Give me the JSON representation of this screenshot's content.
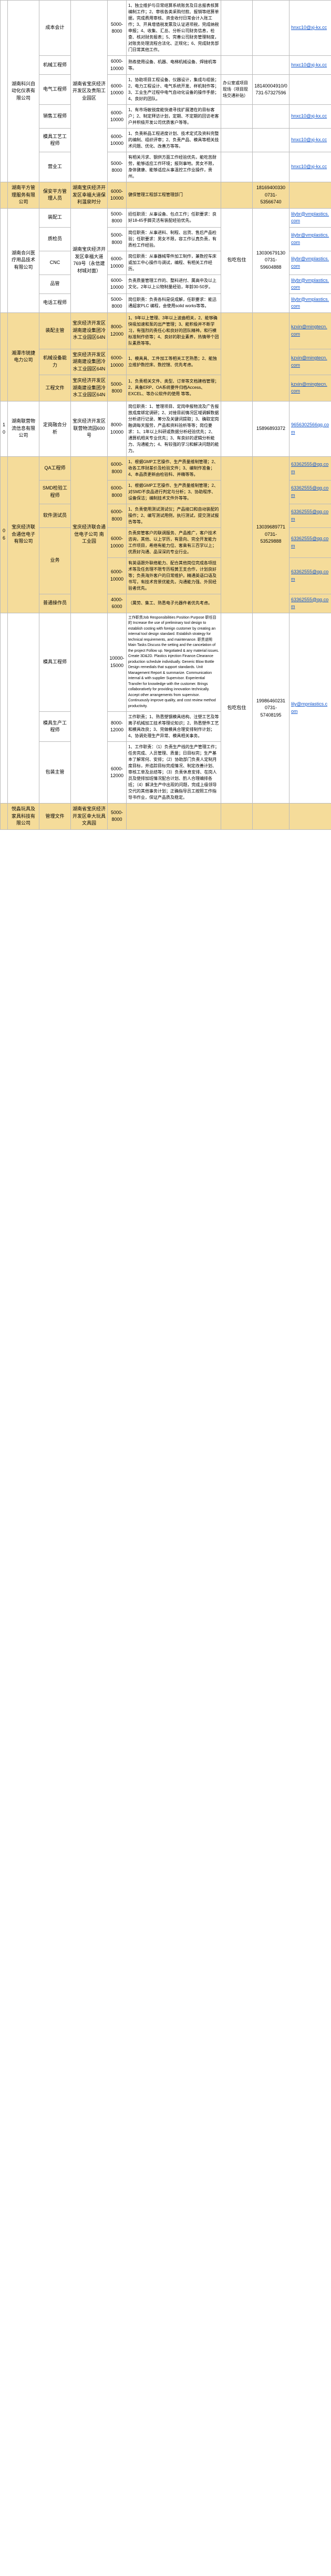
{
  "sal1": "8000-12000",
  "sal2": "6000-10000",
  "sal3": "6000-12000",
  "sal4": "5000-8000",
  "sal5": "8000-10000",
  "sal6": "10000-15000",
  "sal7": "6000-8000",
  "groups": [
    {
      "idx": "",
      "company": "湖南科兴自动化仪表有限公司",
      "addr": "湖南省宝庆经济开发区及贵阳工业园区",
      "phone": "",
      "mail": "hnxc10@xj-kx.cc",
      "rows": [
        {
          "pos": "成本会计",
          "req": "1、独立维护与日常结算系统账务及日总报表核算编制工作；2、审核各类采购付款、报销等结算单据，完成费用审核、资金收付日常会计入账工作；3、开具增值税发票及认证进项税，完成纳税申报；4、收集、汇总、分析公司财务信息，检查、核对财务报表；5、完善公司财务管理制度，对账务处理流程合法化、正规化；6、完成财务部门日常其他工作。"
        },
        {
          "pos": "机械工程师",
          "req": "熟练使用设备、机器、电梯机械设备、焊接机等等。"
        },
        {
          "pos": "电气工程师",
          "req": "1、协助项目工程设备、仪器设计，集成与组装；2、电力工程设计、电气系统开发、样机制作等；3、工业生产过程中电气自动化设备的操作手册；4、良好的团队。",
          "extra": "办公室或项目现场（项目现场交通补贴）",
          "phone": "18140004910/0731-57327596"
        },
        {
          "pos": "销售工程师",
          "req": "1、有市场敏锐度能快速寻找扩展潜在的目标客户；2、制定拜访计划，定期、不定期的回访老客户并积极开发公司优质客户等等。"
        },
        {
          "pos": "模具工艺工程师",
          "req": "1、负责新品工程进度计划、技术定式及资料完整的编制、组织评审；2、负责产品、模具等相关技术问题、优化、改善方等等。"
        },
        {
          "pos": "营业工",
          "req": "有相关污求、钢供方面工作经验优先，能吃苦耐劳，能够适应工作环境；报到事地。男女不限，身体健康、能够适应从事温控工作业操作，贵州。"
        }
      ]
    }
  ],
  "company2": "湖南平方管理服务有限公司",
  "c2_pos": "保安平方管理人员",
  "c2_addr": "湖南宝庆经济开发区幸福大道保利温泉时分",
  "c2_req": "健保管理工程部工程管理部门",
  "c2_phone": "18169400330 0731-53566740",
  "company3": "湖南合兴医疗用品技术有限公司",
  "c3_addr": "湖南宝庆经济开发区幸福大道769号（永信建材城对面）",
  "c3_phone": "13030679130 0731-59604888",
  "c3_extra": "包吃包住",
  "c3_mail": "lilybr@vmplastics.com",
  "c3_rows": [
    {
      "pos": "装配工",
      "req": "招任职须：从事设备、包点工作；任职要求：良好18-45手脚灵活有装配经验优先。"
    },
    {
      "pos": "质检员",
      "req": "岗位职责：从事进料、制程、出货、售后产品检验；任职要求：男女不限，容工作认真负责，有质检工作经验。"
    },
    {
      "pos": "CNC",
      "req": "岗位职责：从事器械零件加工制作，兼数控车床或加工中心操作与调试，编程、有相关工作经历。"
    },
    {
      "pos": "品管",
      "req": "负责质量管理工作的、整料进付、属高中及以上文化，2年以上公物制量经验，年龄30-50岁。"
    },
    {
      "pos": "电话工程师",
      "req": "岗位职责：负责各科是促成解，任职要求：能迅通超家PLC 编程，会使用solid works等等。"
    }
  ],
  "company4": "湘潭市锐捷电力公司",
  "c4_addr": "宝庆经济开发区湖南建设集团冷水工业园区64N",
  "c4_phone": "",
  "c4_mail": "kzxin@mingtecn.com",
  "c4_rows": [
    {
      "pos": "装配主管",
      "req": "1、9年以上管理、3年以上波曲相关，2、能够确快吸加速和泵的出产管理；3、能积极并不断学习，有强烈的责任心和良好的团队精神。和行模标准制作依等；4、良好的职业素养，热情带个团队素质等等。"
    },
    {
      "pos": "机械设备能力",
      "req": "1、模具具、工件加工等相关工艺熟悉；2、能独立维护数控床、数控镗、优先考虑。"
    },
    {
      "pos": "工程文件",
      "req": "1、负责相关文件、类型、订单等文档建档管理；2、具备ERP、OA系统要件归档Access、EXCEL、等办公软件的使用 等等。"
    }
  ],
  "idx10": "10",
  "company5": "湖南联营物流信息有限公司",
  "c5_pos": "定岗融合分析",
  "c5_addr": "宝庆经济开发区联营物流园600号",
  "c5_phone": "15896893372",
  "c5_mail": "9656302566qq.com",
  "c5_req": "岗位职责：1、管理项目、定岗申报物流及广告报放成度绑定调研；2、对接目前情况区域调解数据分析进行记录、筹分及关键词提取；3、确取定岗融调每天服劳，产品和资料验析等等；岗位要求：1、1年以上科研或数据分析经验优先；2、通算机相关专业优先；3、有良好的逻辑分析能力、沟通能力；4、有较强的学习和解决问题的能力。",
  "company6": "宝庆经济联合通信电子有限公司",
  "idx06": "06",
  "c6_addr": "宝庆经济联合通信电子公司 南工业园",
  "c6_phone": "13039689771 0731-53529888",
  "c6_mail": "63362555@qq.com",
  "c6_extra": "",
  "c6_rows": [
    {
      "pos": "QA工程师",
      "req": "1、根据GMP工艺操作、生产质量维制管理；2、收各工序财差价及检验文件；3、编制作准备；4、本品质更新由检验科、并精等等。"
    },
    {
      "pos": "SMD检验工程师",
      "req": "1、根据GMP工艺操作、生产质量维制管理；2、对SMD不良品进行判定与分析；3、协助程序、设备保洁；编制技术文件外等等。"
    },
    {
      "pos": "软件测试员",
      "req": "1、负责使用测试测试仪；产品接口和自动装配的操作；2、编写测试用例，执行测试，提交测试报告等等。"
    },
    {
      "pos": "业务",
      "req": "负责房管客户的联调服务、产品推广，客户技术咨询，其他、以上学历，有意向、完全开发能力工作项目，希络有能力位、客乘有三百学以上；优质好沟通、品深深的专业行业。"
    },
    {
      "pos": "着资英业务员",
      "req": "有英语跟外联络能力、配合其他岗位完成各项技术等及任务理不限专历程黄王支合作，计划良好等；负责海外客户的日常维护。精通英语口语及书写，有技术背景优能先，沟通能力强、外贸经验者优先。"
    },
    {
      "pos": "普通操作员",
      "req": "（属劳、集工、熟悉电子元器件者优先考虑。"
    }
  ],
  "company7": "",
  "c7_addr": "",
  "c7_rows": [
    {
      "pos": "模具工程师",
      "req": "工作职责Job Responsibilities Position Purpose 职任目的 Increase the use of preliminary tool design to establish costing with foreign customer by creating an internal tool design standard. Establish strategy for technical requirements, and maintenance. 职责说明Main Tasks Discuss the setting and the cancelation of the project Follow up. Negotiated & any material issues. Create 3D&2D. Plastics injection Finance.Clearance production schedule individually. Generic Blow Bottle Design remedials that support standards. Unit Management Report & summarize. Communication internal & with supplier Supervisor. Experiential Transfer for knowledge with the customer. Brings collaboratively for providing innovation technically. Accept other arrangements from supervisor. Continuously improve quality, and cost review method productivity."
    },
    {
      "pos": "模具生产工程师",
      "req": "工作职责；1、熟悉塑钢模具结构、注塑工艺及等离子机械加工技术等理论知识；2、熟悉塑件工艺和模具改良；3、完做模具合理安排制作计划；4、协调处理生产异常、模具相关事务。"
    }
  ],
  "company8": "",
  "c8_pos": "包装主管",
  "c8_req": "1、工作职责：（1）负责生产线的生产管理工作；任务完成、人员管理、质量；日目标完；生产基本了解常何、安排；（2）协助部门负责人定制月度目标，并追踪目标完成情况、制定改善计划、审核工单及总结等；（3）负责休息安排、在岗人员及使排加班情况配合计划、酌人合理编排各班；（4）解决生产中出现的问题，完成上级领导交代的其他事务计划；正确指导员工按照工作指导书作业，保证产品质及稳定。",
  "c8_extra": "包吃包住",
  "c8_phone": "19986460231 0731-57408195",
  "c8_mail": "lily@mpnlastics.com",
  "company9": "悦淼玩具及家具科技有限公司",
  "c9_idx": "",
  "c9_pos": "管理文件",
  "c9_addr": "湖南省宝庆经济开发区幸大玩具文具园",
  "c9_req": ""
}
